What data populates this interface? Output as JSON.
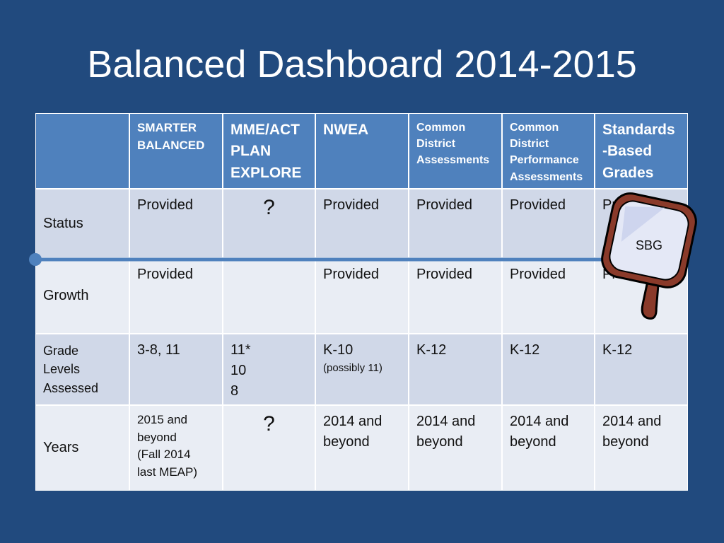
{
  "title": "Balanced Dashboard 2014-2015",
  "table": {
    "headers": [
      "SMARTER\nBALANCED",
      "MME/ACT\nPLAN\nEXPLORE",
      "NWEA",
      "Common\nDistrict\nAssessments",
      "Common\nDistrict\nPerformance\nAssessments",
      "Standards\n-Based\nGrades"
    ],
    "rows": [
      {
        "label": "Status",
        "cells": [
          "Provided",
          "?",
          "Provided",
          "Provided",
          "Provided",
          "Provided"
        ]
      },
      {
        "label": "Growth",
        "cells": [
          "Provided",
          null,
          "Provided",
          "Provided",
          "Provided",
          "Provided"
        ]
      },
      {
        "label": "Grade\nLevels\nAssessed",
        "cells": [
          "3-8, 11",
          "11*\n10\n8",
          "K-10",
          "K-12",
          "K-12",
          "K-12"
        ],
        "note": "(possibly 11)"
      },
      {
        "label": "Years",
        "cells": [
          "2015 and\nbeyond\n(Fall 2014\nlast MEAP)",
          "?",
          "2014 and\nbeyond",
          "2014 and\nbeyond",
          "2014 and\nbeyond",
          "2014 and\nbeyond"
        ]
      }
    ]
  },
  "mirror_label": "SBG"
}
